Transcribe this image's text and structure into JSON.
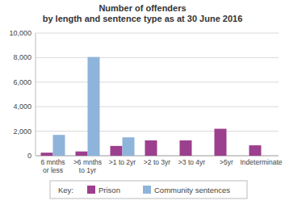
{
  "chart_data": {
    "type": "bar",
    "title": "Number of offenders",
    "subtitle": "by length and sentence type as at 30 June 2016",
    "categories": [
      "6 mnths or less",
      ">6 mnths to 1yr",
      ">1 to 2yr",
      ">2 to 3yr",
      ">3 to 4yr",
      ">5yr",
      "Indeterminate"
    ],
    "series": [
      {
        "name": "Prison",
        "color": "#9c3f8e",
        "values": [
          250,
          350,
          800,
          1250,
          1250,
          2200,
          850
        ]
      },
      {
        "name": "Community sentences",
        "color": "#8fb4db",
        "values": [
          1700,
          8050,
          1500,
          null,
          null,
          null,
          null
        ]
      }
    ],
    "ylim": [
      0,
      10000
    ],
    "yticks": [
      0,
      {
        "value": 2000,
        "label": "2,000"
      },
      {
        "value": 4000,
        "label": "4,000"
      },
      {
        "value": 6000,
        "label": "6,000"
      },
      {
        "value": 8000,
        "label": "8,000"
      },
      {
        "value": 10000,
        "label": "10,000"
      }
    ],
    "grid": true,
    "legend": "bottom",
    "legend_title": "Key:"
  }
}
